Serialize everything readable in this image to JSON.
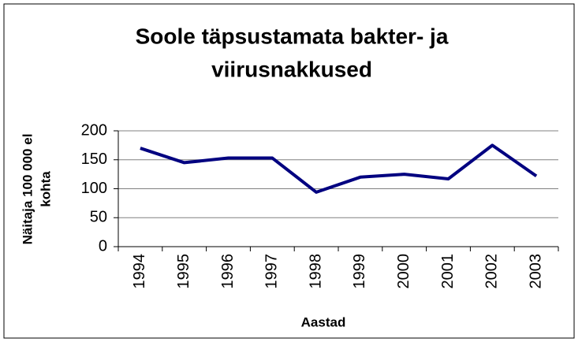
{
  "chart_data": {
    "type": "line",
    "title": [
      "Soole täpsustamata bakter- ja",
      "viirusnakkused"
    ],
    "x_label": "Aastad",
    "y_label": [
      "Näitaja 100 000 el",
      "kohta"
    ],
    "categories": [
      "1994",
      "1995",
      "1996",
      "1997",
      "1998",
      "1999",
      "2000",
      "2001",
      "2002",
      "2003"
    ],
    "series": [
      {
        "name": "Näitaja",
        "color": "#000080",
        "values": [
          170,
          145,
          153,
          153,
          94,
          120,
          125,
          117,
          175,
          122
        ]
      }
    ],
    "ylim": [
      0,
      200
    ],
    "yticks": [
      0,
      50,
      100,
      150,
      200
    ],
    "grid": true,
    "legend": false
  }
}
